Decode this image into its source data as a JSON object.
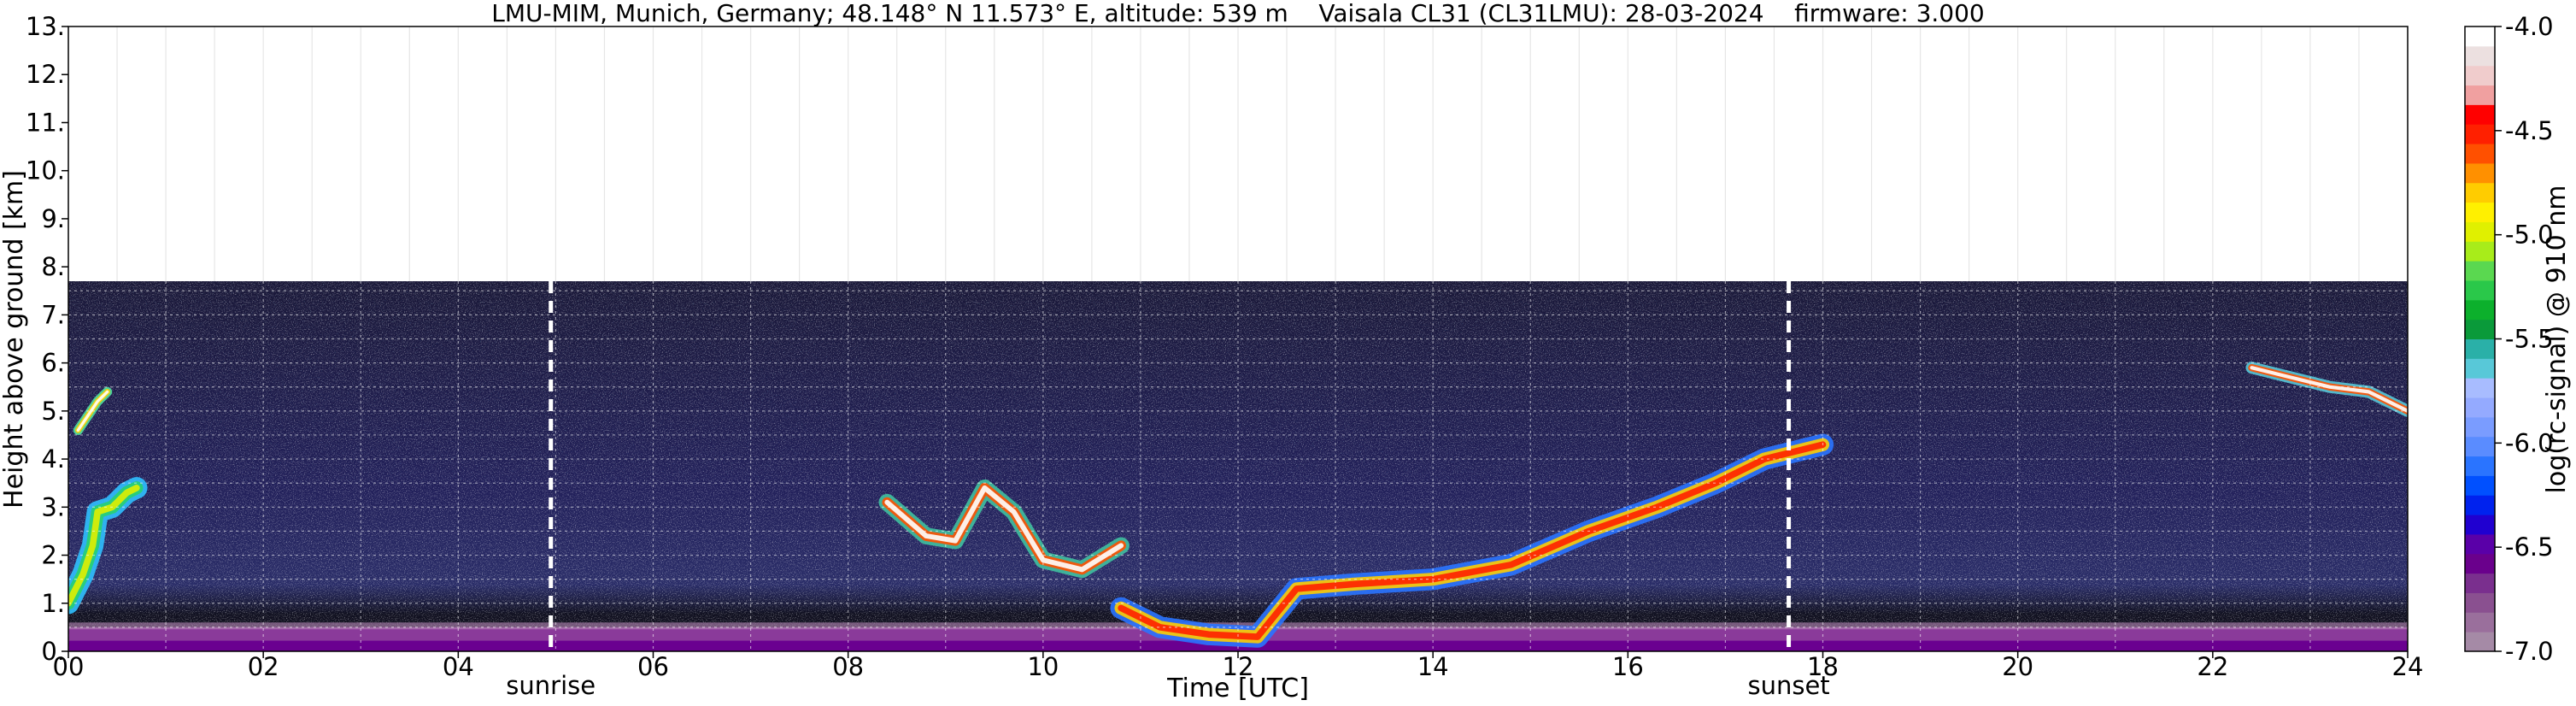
{
  "chart_data": {
    "type": "heatmap",
    "title": "LMU-MIM, Munich, Germany; 48.148° N 11.573° E, altitude: 539 m    Vaisala CL31 (CL31LMU): 28-03-2024    firmware: 3.000",
    "xlabel": "Time [UTC]",
    "ylabel": "Height above ground [km]",
    "xlim": [
      0,
      24
    ],
    "ylim": [
      0,
      13
    ],
    "x_ticks": [
      "00",
      "02",
      "04",
      "06",
      "08",
      "10",
      "12",
      "14",
      "16",
      "18",
      "20",
      "22",
      "24"
    ],
    "y_ticks": [
      "0.",
      "1.",
      "2.",
      "3.",
      "4.",
      "5.",
      "6.",
      "7.",
      "8.",
      "9.",
      "10.",
      "11.",
      "12.",
      "13."
    ],
    "grid": true,
    "signal_top_km": 7.7,
    "annotations": [
      {
        "label": "sunrise",
        "x": 4.95
      },
      {
        "label": "sunset",
        "x": 17.65
      }
    ],
    "colorbar": {
      "label": "log(rc-signal) @ 910 nm",
      "range": [
        -7.0,
        -4.0
      ],
      "ticks": [
        "-7.0",
        "-6.5",
        "-6.0",
        "-5.5",
        "-5.0",
        "-4.5",
        "-4.0"
      ],
      "colors": [
        "#a58aa6",
        "#9a6f9c",
        "#8a5090",
        "#7a2f8e",
        "#6a008c",
        "#5a00a8",
        "#2000d0",
        "#0022ee",
        "#0050ff",
        "#2a74ff",
        "#5a8cff",
        "#7a9cff",
        "#94aaff",
        "#a8bcff",
        "#58c8d8",
        "#2ab0a8",
        "#0a9a3a",
        "#0cb02c",
        "#2ac84a",
        "#5ad850",
        "#a8ec1a",
        "#e0f000",
        "#fff000",
        "#ffcc00",
        "#ff9000",
        "#ff5000",
        "#ff2000",
        "#ff0000",
        "#f0a0a0",
        "#f0cccc",
        "#ece0e0",
        "#ffffff"
      ]
    },
    "features": [
      {
        "name": "surface aerosol layer",
        "x": [
          0,
          24
        ],
        "height_km": [
          0,
          0.5
        ]
      },
      {
        "name": "cloud layer",
        "x": [
          0,
          0.7
        ],
        "height_km": [
          1.5,
          5.6
        ]
      },
      {
        "name": "cloud layer",
        "x": [
          8.4,
          11.0
        ],
        "height_km": [
          1.5,
          4.1
        ]
      },
      {
        "name": "boundary layer top",
        "x": [
          10.8,
          18.1
        ],
        "height_km": [
          0.1,
          4.6
        ]
      },
      {
        "name": "cloud layer",
        "x": [
          22.3,
          24
        ],
        "height_km": [
          4.8,
          6.1
        ]
      }
    ]
  }
}
